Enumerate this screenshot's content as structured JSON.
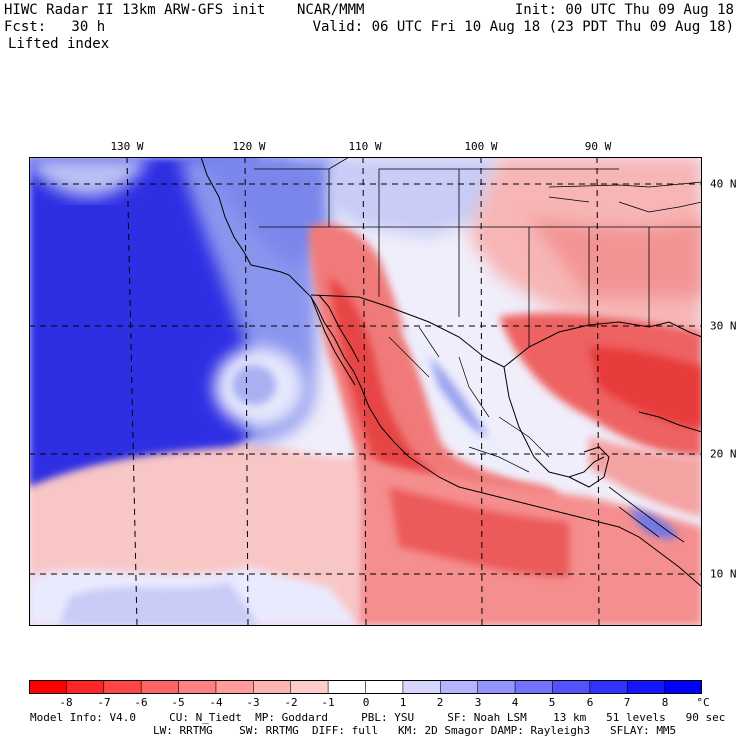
{
  "header": {
    "title_left": "HIWC Radar II 13km ARW-GFS init",
    "title_center": "NCAR/MMM",
    "init": "Init: 00 UTC Thu 09 Aug 18",
    "fcst": "Fcst:   30 h",
    "valid": "Valid: 06 UTC Fri 10 Aug 18 (23 PDT Thu 09 Aug 18)",
    "field": "Lifted index"
  },
  "map": {
    "longitude_labels": [
      "130 W",
      "120 W",
      "110 W",
      "100 W",
      "90 W"
    ],
    "latitude_labels": [
      "40 N",
      "30 N",
      "20 N",
      "10 N"
    ],
    "colors": {
      "ocean_stable": "#2a2ae0",
      "mid_stable": "#8c96f0",
      "neutral": "#f2f2ff",
      "unstable_light": "#f7a4a4",
      "unstable_mid": "#f26b6b",
      "unstable_strong": "#e83a3a"
    }
  },
  "colorbar": {
    "labels": [
      "-8",
      "-7",
      "-6",
      "-5",
      "-4",
      "-3",
      "-2",
      "-1",
      "0",
      "1",
      "2",
      "3",
      "4",
      "5",
      "6",
      "7",
      "8"
    ],
    "unit": "°C",
    "colors": [
      "#ff0000",
      "#ff2525",
      "#ff4646",
      "#ff6464",
      "#ff8080",
      "#ff9b9b",
      "#ffb4b4",
      "#ffcccc",
      "#ffffff",
      "#ffffff",
      "#d6d6ff",
      "#b4b4ff",
      "#9494ff",
      "#7272ff",
      "#5252ff",
      "#3333ff",
      "#1414ff",
      "#0000ff"
    ]
  },
  "footer": {
    "line1": "Model Info: V4.0     CU: N_Tiedt  MP: Goddard     PBL: YSU     SF: Noah LSM    13 km   51 levels   90 sec",
    "line2": "LW: RRTMG    SW: RRTMG  DIFF: full   KM: 2D Smagor DAMP: Rayleigh3   SFLAY: MM5"
  }
}
